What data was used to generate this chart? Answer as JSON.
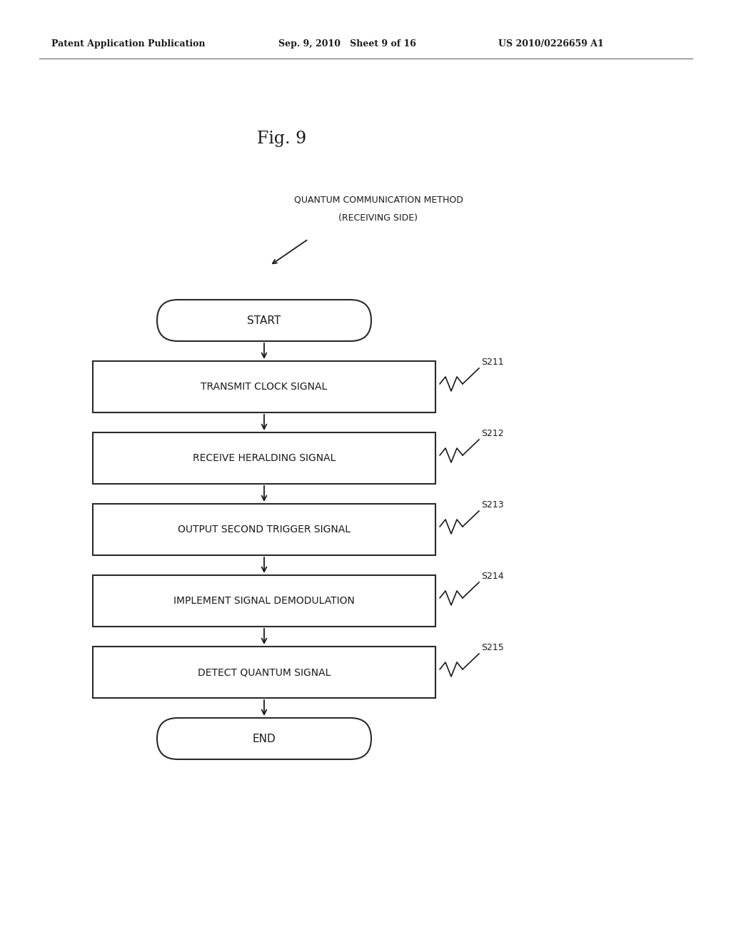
{
  "fig_label": "Fig. 9",
  "header_left": "Patent Application Publication",
  "header_mid": "Sep. 9, 2010   Sheet 9 of 16",
  "header_right": "US 2010/0226659 A1",
  "annotation_line1": "QUANTUM COMMUNICATION METHOD",
  "annotation_line2": "(RECEIVING SIDE)",
  "start_label": "START",
  "end_label": "END",
  "steps": [
    {
      "label": "TRANSMIT CLOCK SIGNAL",
      "step_id": "S211"
    },
    {
      "label": "RECEIVE HERALDING SIGNAL",
      "step_id": "S212"
    },
    {
      "label": "OUTPUT SECOND TRIGGER SIGNAL",
      "step_id": "S213"
    },
    {
      "label": "IMPLEMENT SIGNAL DEMODULATION",
      "step_id": "S214"
    },
    {
      "label": "DETECT QUANTUM SIGNAL",
      "step_id": "S215"
    }
  ],
  "bg_color": "#ffffff",
  "box_edge_color": "#2a2a2a",
  "text_color": "#1a1a1a",
  "arrow_color": "#1a1a1a",
  "header_fontsize": 9,
  "fig_fontsize": 17,
  "annotation_fontsize": 9,
  "step_fontsize": 10,
  "pill_fontsize": 11,
  "step_id_fontsize": 9
}
